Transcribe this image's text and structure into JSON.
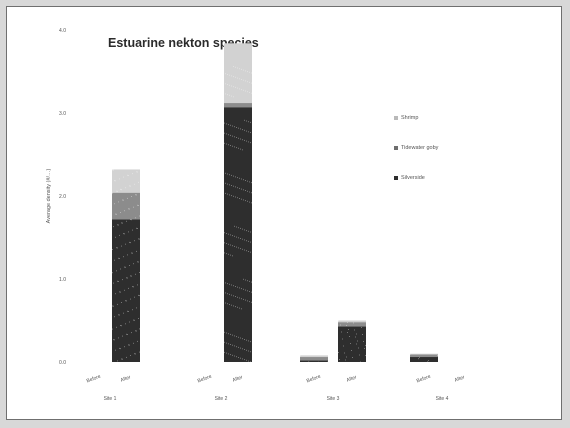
{
  "chart_data": {
    "type": "bar",
    "stacked": true,
    "title": "Estuarine nekton species",
    "ylabel": "Average density (#/…)",
    "ylim": [
      0,
      4
    ],
    "y_ticks": [
      "0.0",
      "1.0",
      "2.0",
      "3.0",
      "4.0"
    ],
    "groups": [
      "Site 1",
      "Site 2",
      "Site 3",
      "Site 4"
    ],
    "categories": [
      "Before",
      "After",
      "Before",
      "After",
      "Before",
      "After",
      "Before",
      "After"
    ],
    "series": [
      {
        "name": "Silverside",
        "color": "#2e2e2e",
        "values": [
          0,
          1.72,
          0,
          3.07,
          0.02,
          0.43,
          0.06,
          0
        ]
      },
      {
        "name": "Tidewater goby",
        "color": "#8c8c8c",
        "values": [
          0,
          0.32,
          0,
          0.05,
          0.04,
          0.05,
          0.03,
          0
        ]
      },
      {
        "name": "Shrimp",
        "color": "#d2d2d2",
        "values": [
          0,
          0.28,
          0,
          0.72,
          0.02,
          0.02,
          0.01,
          0
        ]
      }
    ],
    "legend_position": "right",
    "grid": false
  }
}
